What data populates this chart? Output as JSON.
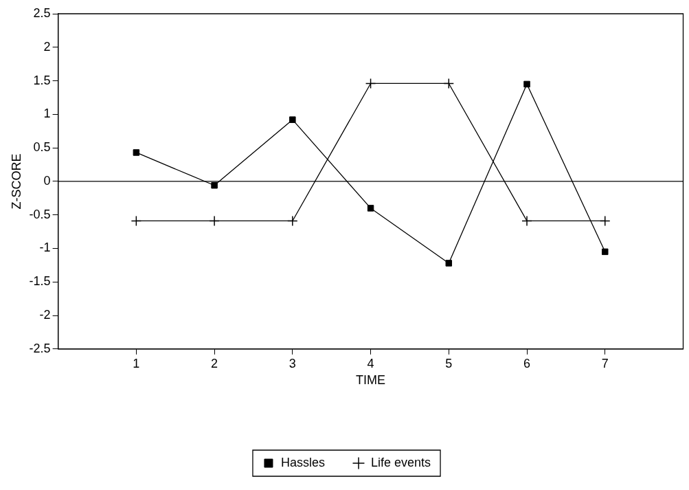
{
  "chart_data": {
    "type": "line",
    "xlabel": "TIME",
    "ylabel": "Z-SCORE",
    "x": [
      1,
      2,
      3,
      4,
      5,
      6,
      7
    ],
    "series": [
      {
        "name": "Hassles",
        "color": "#000000",
        "marker": "square",
        "values": [
          0.43,
          -0.06,
          0.92,
          -0.4,
          -1.22,
          1.45,
          -1.05
        ]
      },
      {
        "name": "Life events",
        "color": "#000000",
        "marker": "cross",
        "values": [
          -0.59,
          -0.59,
          -0.59,
          1.46,
          1.46,
          -0.59,
          -0.59
        ]
      }
    ],
    "xlim": [
      0,
      8
    ],
    "xticks": [
      1,
      2,
      3,
      4,
      5,
      6,
      7
    ],
    "ylim": [
      -2.5,
      2.5
    ],
    "yticks": [
      -2.5,
      -2,
      -1.5,
      -1,
      -0.5,
      0,
      0.5,
      1,
      1.5,
      2,
      2.5
    ],
    "ref_lines": [
      {
        "axis": "y",
        "value": 0,
        "color": "#000000"
      }
    ],
    "grid": false,
    "legend": "bottom",
    "line_style": "solid"
  }
}
